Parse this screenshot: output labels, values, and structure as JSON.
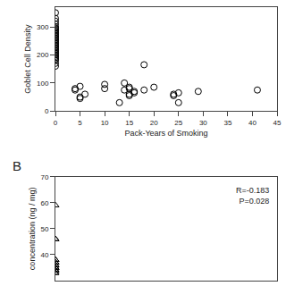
{
  "chart_data": [
    {
      "type": "scatter",
      "x_label": "Pack-Years of Smoking",
      "y_label": "Goblet Cell Density",
      "x": [
        0,
        0,
        0,
        0,
        0,
        0,
        0,
        0,
        0,
        0,
        0,
        0,
        0,
        0,
        0,
        0,
        0,
        0,
        0,
        0,
        0,
        0,
        0,
        0,
        0,
        0,
        0,
        0,
        0,
        0,
        0,
        4,
        4,
        5,
        5,
        5,
        6,
        10,
        10,
        13,
        14,
        14,
        15,
        15,
        15,
        15,
        16,
        16,
        18,
        18,
        20,
        24,
        24,
        25,
        25,
        29,
        41
      ],
      "values": [
        350,
        330,
        320,
        310,
        300,
        295,
        290,
        285,
        280,
        275,
        270,
        265,
        260,
        255,
        250,
        245,
        240,
        235,
        230,
        225,
        220,
        215,
        210,
        205,
        200,
        195,
        190,
        185,
        180,
        170,
        160,
        80,
        75,
        88,
        50,
        45,
        60,
        95,
        80,
        30,
        100,
        75,
        85,
        80,
        60,
        55,
        70,
        65,
        165,
        75,
        85,
        60,
        55,
        65,
        30,
        70,
        75
      ],
      "xlim": [
        0,
        45
      ],
      "ylim": [
        0,
        370
      ],
      "xticks": [
        0,
        5,
        10,
        15,
        20,
        25,
        30,
        35,
        40,
        45
      ],
      "yticks": [
        0,
        100,
        200,
        300
      ],
      "marker": "circle-open",
      "color": "#000000",
      "grid": false
    },
    {
      "type": "scatter",
      "title": "B",
      "y_label": "concentration (ng / mg)",
      "x": [
        0,
        0,
        0,
        0,
        0,
        0,
        0,
        0,
        0,
        0,
        0,
        0,
        0,
        0,
        0,
        0,
        0,
        0
      ],
      "values": [
        59,
        46,
        46,
        38,
        38,
        37,
        37,
        36,
        36,
        35,
        35,
        35,
        35,
        34,
        34,
        34,
        33,
        33
      ],
      "xlim": [
        0,
        45
      ],
      "ylim": [
        30,
        70
      ],
      "yticks": [
        40,
        50,
        60,
        70
      ],
      "tick_labels": "y",
      "marker": "triangle-up-open",
      "color": "#000000",
      "grid": false,
      "annotations": [
        {
          "text": "R=-0.183\nP=0.028"
        }
      ]
    }
  ]
}
